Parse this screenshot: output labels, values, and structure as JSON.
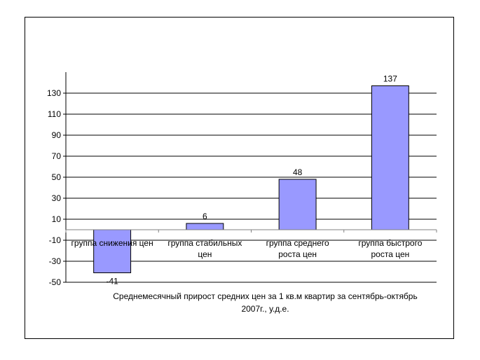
{
  "chart_data": {
    "type": "bar",
    "title": "",
    "categories": [
      [
        "группа снижения цен"
      ],
      [
        "группа стабильных",
        "цен"
      ],
      [
        "группа среднего",
        "роста цен"
      ],
      [
        "группа быстрого",
        "роста цен"
      ]
    ],
    "values": [
      -41,
      6,
      48,
      137
    ],
    "data_labels": [
      "-41",
      "6",
      "48",
      "137"
    ],
    "xlabel": [
      "Среднемесячный прирост средних цен за 1 кв.м квартир за сентябрь-октябрь",
      "2007г., у.д.е."
    ],
    "ylabel": "",
    "ylim": [
      -50,
      150
    ],
    "yticks": [
      -50,
      -30,
      -10,
      10,
      30,
      50,
      70,
      90,
      110,
      130
    ],
    "grid": true,
    "legend": "none",
    "colors": {
      "bar": "#9999ff",
      "bar_stroke": "#000000",
      "grid": "#000000",
      "axis": "#808080"
    }
  }
}
